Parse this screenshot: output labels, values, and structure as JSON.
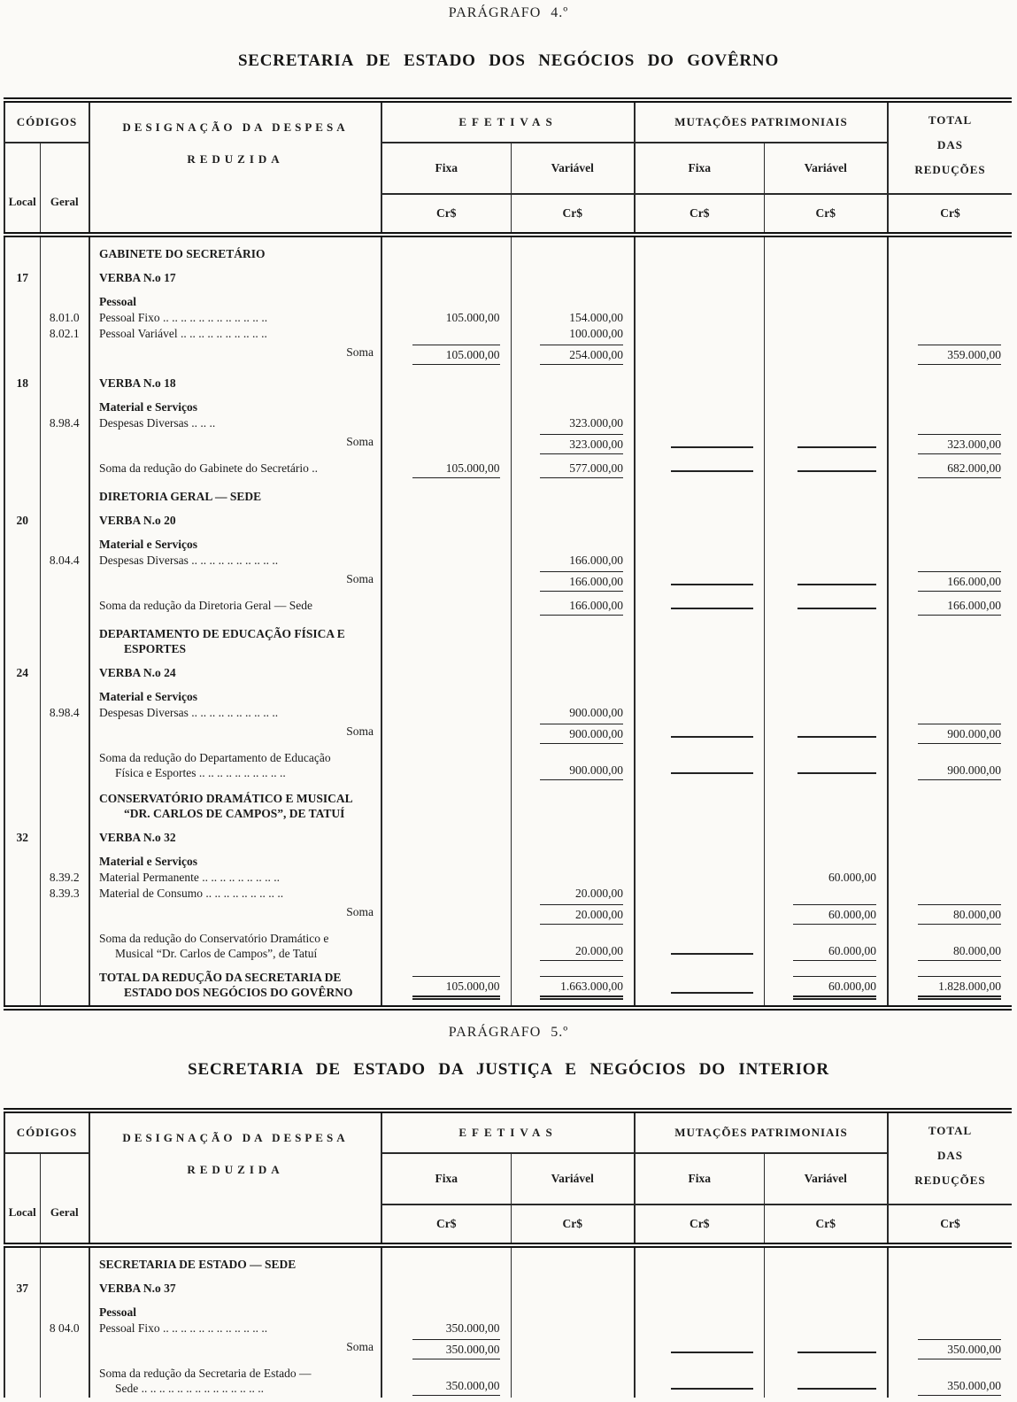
{
  "page": {
    "para4_heading": "PARÁGRAFO 4.º",
    "table1_title": "SECRETARIA DE ESTADO DOS NEGÓCIOS DO GOVÊRNO",
    "para5_heading": "PARÁGRAFO 5.º",
    "table2_title": "SECRETARIA DE ESTADO DA JUSTIÇA E NEGÓCIOS DO INTERIOR"
  },
  "header": {
    "codigos": "CÓDIGOS",
    "local": "Local",
    "geral": "Geral",
    "designacao_line1": "DESIGNAÇÃO DA DESPESA",
    "designacao_line2": "REDUZIDA",
    "efetivas": "EFETIVAS",
    "mutacoes": "MUTAÇÕES PATRIMONIAIS",
    "fixa": "Fixa",
    "variavel": "Variável",
    "total_line1": "TOTAL",
    "total_line2": "DAS",
    "total_line3": "REDUÇÕES",
    "currency": "Cr$"
  },
  "table1": {
    "rows": [
      {
        "kind": "section",
        "label": "GABINETE DO SECRETÁRIO"
      },
      {
        "kind": "verba",
        "local": "17",
        "label": "VERBA N.o 17"
      },
      {
        "kind": "subhead",
        "label": "Pessoal"
      },
      {
        "kind": "item",
        "geral": "8.01.0",
        "label": "Pessoal Fixo .. .. .. .. .. .. .. .. .. .. .. ..",
        "ef_fixa": "105.000,00",
        "ef_var": "154.000,00"
      },
      {
        "kind": "item",
        "geral": "8.02.1",
        "label": "Pessoal Variável .. .. .. .. .. .. .. .. .. ..",
        "ef_var": "100.000,00"
      },
      {
        "kind": "soma",
        "label": "Soma",
        "ef_fixa": "105.000,00",
        "ef_var": "254.000,00",
        "total": "359.000,00"
      },
      {
        "kind": "verba",
        "local": "18",
        "label": "VERBA N.o 18"
      },
      {
        "kind": "subhead",
        "label": "Material e Serviços"
      },
      {
        "kind": "item",
        "geral": "8.98.4",
        "label": "Despesas Diversas .. .. ..",
        "ef_var": "323.000,00"
      },
      {
        "kind": "soma",
        "label": "Soma",
        "ef_var": "323.000,00",
        "mut_fixa": "—",
        "mut_var": "—",
        "total": "323.000,00"
      },
      {
        "kind": "somared",
        "label": "Soma da redução do Gabinete do Secretário ..",
        "ef_fixa": "105.000,00",
        "ef_var": "577.000,00",
        "mut_fixa": "—",
        "mut_var": "—",
        "total": "682.000,00"
      },
      {
        "kind": "section",
        "label": "DIRETORIA GERAL — SEDE"
      },
      {
        "kind": "verba",
        "local": "20",
        "label": "VERBA N.o 20"
      },
      {
        "kind": "subhead",
        "label": "Material e Serviços"
      },
      {
        "kind": "item",
        "geral": "8.04.4",
        "label": "Despesas Diversas .. .. .. .. .. .. .. .. .. ..",
        "ef_var": "166.000,00"
      },
      {
        "kind": "soma",
        "label": "Soma",
        "ef_var": "166.000,00",
        "mut_fixa": "—",
        "mut_var": "—",
        "total": "166.000,00"
      },
      {
        "kind": "somared",
        "label": "Soma da redução da Diretoria Geral — Sede",
        "ef_var": "166.000,00",
        "mut_fixa": "—",
        "mut_var": "—",
        "total": "166.000,00"
      },
      {
        "kind": "section",
        "label": "DEPARTAMENTO DE EDUCAÇÃO FÍSICA E",
        "label2": "ESPORTES"
      },
      {
        "kind": "verba",
        "local": "24",
        "label": "VERBA N.o 24"
      },
      {
        "kind": "subhead",
        "label": "Material e Serviços"
      },
      {
        "kind": "item",
        "geral": "8.98.4",
        "label": "Despesas Diversas .. .. .. .. .. .. .. .. .. ..",
        "ef_var": "900.000,00"
      },
      {
        "kind": "soma",
        "label": "Soma",
        "ef_var": "900.000,00",
        "mut_fixa": "—",
        "mut_var": "—",
        "total": "900.000,00"
      },
      {
        "kind": "somared",
        "label": "Soma da redução do Departamento de Educação",
        "label2": "Física e Esportes .. .. .. .. .. .. .. .. .. ..",
        "ef_var": "900.000,00",
        "mut_fixa": "—",
        "mut_var": "—",
        "total": "900.000,00"
      },
      {
        "kind": "section",
        "label": "CONSERVATÓRIO DRAMÁTICO E MUSICAL",
        "label2": "“DR. CARLOS DE CAMPOS”, DE TATUÍ"
      },
      {
        "kind": "verba",
        "local": "32",
        "label": "VERBA N.o 32"
      },
      {
        "kind": "subhead",
        "label": "Material e Serviços"
      },
      {
        "kind": "item",
        "geral": "8.39.2",
        "label": "Material Permanente .. .. .. .. .. .. .. .. ..",
        "mut_var": "60.000,00"
      },
      {
        "kind": "item",
        "geral": "8.39.3",
        "label": "Material de Consumo .. .. .. .. .. .. .. .. ..",
        "ef_var": "20.000,00"
      },
      {
        "kind": "soma",
        "label": "Soma",
        "ef_var": "20.000,00",
        "mut_var": "60.000,00",
        "total": "80.000,00"
      },
      {
        "kind": "somared",
        "label": "Soma da redução do Conservatório Dramático e",
        "label2": "Musical “Dr. Carlos de Campos”, de Tatuí",
        "ef_var": "20.000,00",
        "mut_fixa": "—",
        "mut_var": "60.000,00",
        "total": "80.000,00"
      },
      {
        "kind": "total",
        "label": "TOTAL DA REDUÇÃO DA SECRETARIA DE",
        "label2": "ESTADO DOS NEGÓCIOS DO GOVÊRNO",
        "ef_fixa": "105.000,00",
        "ef_var": "1.663.000,00",
        "mut_fixa": "—",
        "mut_var": "60.000,00",
        "total": "1.828.000,00"
      }
    ]
  },
  "table2": {
    "rows": [
      {
        "kind": "section",
        "label": "SECRETARIA DE ESTADO — SEDE"
      },
      {
        "kind": "verba",
        "local": "37",
        "label": "VERBA N.o 37"
      },
      {
        "kind": "subhead",
        "label": "Pessoal"
      },
      {
        "kind": "item",
        "geral": "8 04.0",
        "label": "Pessoal Fixo .. .. .. .. .. .. .. .. .. .. .. ..",
        "ef_fixa": "350.000,00"
      },
      {
        "kind": "soma",
        "label": "Soma",
        "ef_fixa": "350.000,00",
        "mut_fixa": "—",
        "mut_var": "—",
        "total": "350.000,00"
      },
      {
        "kind": "somared",
        "label": "Soma da redução da Secretaria de Estado —",
        "label2": "Sede .. .. .. .. .. .. .. .. .. .. .. .. .. ..",
        "ef_fixa": "350.000,00",
        "mut_fixa": "—",
        "mut_var": "—",
        "total": "350.000,00"
      }
    ]
  }
}
